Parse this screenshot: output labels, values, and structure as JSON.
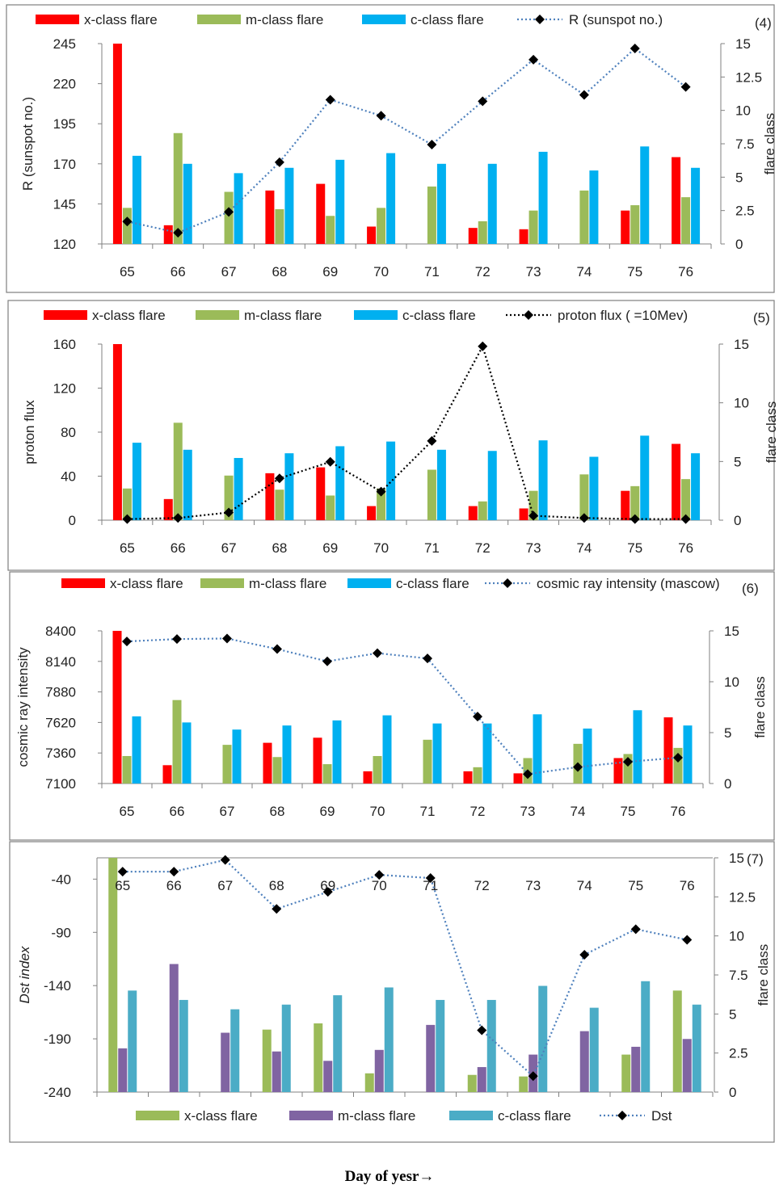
{
  "caption": "Day of yesr→",
  "colors": {
    "red": "#ff0000",
    "green": "#9bbb59",
    "blue": "#00b0f0",
    "purple": "#8064a2",
    "teal": "#4bacc6",
    "lightgreen": "#9bbb59",
    "dotted_blue": "#4f81bd",
    "dotted_black": "#000000",
    "marker": "#000000",
    "frame": "#7f7f7f"
  },
  "chart_data": [
    {
      "type": "bar",
      "panel_label": "(4)",
      "x": [
        "65",
        "66",
        "67",
        "68",
        "69",
        "70",
        "71",
        "72",
        "73",
        "74",
        "75",
        "76"
      ],
      "ylabel": "R (sunspot no.)",
      "y2label": "flare class",
      "yticks": [
        "120",
        "145",
        "170",
        "195",
        "220",
        "245"
      ],
      "y2ticks": [
        "0",
        "2.5",
        "5",
        "7.5",
        "10",
        "12.5",
        "15"
      ],
      "ylim": [
        120,
        245
      ],
      "y2lim": [
        0,
        15
      ],
      "series": [
        {
          "name": "x-class flare",
          "axis": "right",
          "kind": "bar",
          "values": [
            15,
            1.4,
            0,
            4.0,
            4.5,
            1.3,
            0,
            1.2,
            1.1,
            0,
            2.5,
            6.5
          ]
        },
        {
          "name": "m-class flare",
          "axis": "right",
          "kind": "bar",
          "values": [
            2.7,
            8.3,
            3.9,
            2.6,
            2.1,
            2.7,
            4.3,
            1.7,
            2.5,
            4.0,
            2.9,
            3.5
          ]
        },
        {
          "name": "c-class flare",
          "axis": "right",
          "kind": "bar",
          "values": [
            6.6,
            6.0,
            5.3,
            5.7,
            6.3,
            6.8,
            6.0,
            6.0,
            6.9,
            5.5,
            7.3,
            5.7
          ]
        },
        {
          "name": "R (sunspot no.)",
          "axis": "left",
          "kind": "line",
          "values": [
            134,
            127,
            140,
            171,
            210,
            200,
            182,
            209,
            235,
            213,
            242,
            218
          ]
        }
      ]
    },
    {
      "type": "bar",
      "panel_label": "(5)",
      "x": [
        "65",
        "66",
        "67",
        "68",
        "69",
        "70",
        "71",
        "72",
        "73",
        "74",
        "75",
        "76"
      ],
      "ylabel": "proton flux",
      "y2label": "flare class",
      "yticks": [
        "0",
        "40",
        "80",
        "120",
        "160"
      ],
      "y2ticks": [
        "0",
        "5",
        "10",
        "15"
      ],
      "ylim": [
        0,
        160
      ],
      "y2lim": [
        0,
        15
      ],
      "series": [
        {
          "name": "x-class flare",
          "axis": "right",
          "kind": "bar",
          "values": [
            15,
            1.8,
            0,
            4.0,
            4.5,
            1.2,
            0,
            1.2,
            1.0,
            0,
            2.5,
            6.5
          ]
        },
        {
          "name": "m-class flare",
          "axis": "right",
          "kind": "bar",
          "values": [
            2.7,
            8.3,
            3.8,
            2.6,
            2.1,
            2.7,
            4.3,
            1.6,
            2.5,
            3.9,
            2.9,
            3.5
          ]
        },
        {
          "name": "c-class flare",
          "axis": "right",
          "kind": "bar",
          "values": [
            6.6,
            6.0,
            5.3,
            5.7,
            6.3,
            6.7,
            6.0,
            5.9,
            6.8,
            5.4,
            7.2,
            5.7
          ]
        },
        {
          "name": "proton flux ( =10Mev)",
          "axis": "left",
          "kind": "line",
          "values": [
            1,
            2,
            7,
            38,
            53,
            26,
            72,
            158,
            4,
            2,
            1,
            1
          ]
        }
      ]
    },
    {
      "type": "bar",
      "panel_label": "(6)",
      "x": [
        "65",
        "66",
        "67",
        "68",
        "69",
        "70",
        "71",
        "72",
        "73",
        "74",
        "75",
        "76"
      ],
      "ylabel": "cosmic ray intensity",
      "y2label": "flare class",
      "yticks": [
        "7100",
        "7360",
        "7620",
        "7880",
        "8140",
        "8400"
      ],
      "y2ticks": [
        "0",
        "5",
        "10",
        "15"
      ],
      "ylim": [
        7100,
        8400
      ],
      "y2lim": [
        0,
        15
      ],
      "series": [
        {
          "name": "x-class flare",
          "axis": "right",
          "kind": "bar",
          "values": [
            15,
            1.8,
            0,
            4.0,
            4.5,
            1.2,
            0,
            1.2,
            1.0,
            0,
            2.5,
            6.5
          ]
        },
        {
          "name": "m-class flare",
          "axis": "right",
          "kind": "bar",
          "values": [
            2.7,
            8.2,
            3.8,
            2.6,
            1.9,
            2.7,
            4.3,
            1.6,
            2.5,
            3.9,
            2.9,
            3.5
          ]
        },
        {
          "name": "c-class flare",
          "axis": "right",
          "kind": "bar",
          "values": [
            6.6,
            6.0,
            5.3,
            5.7,
            6.2,
            6.7,
            5.9,
            5.9,
            6.8,
            5.4,
            7.2,
            5.7
          ]
        },
        {
          "name": "cosmic ray intensity (mascow)",
          "axis": "left",
          "kind": "line",
          "values": [
            8310,
            8330,
            8335,
            8245,
            8140,
            8210,
            8165,
            7670,
            7180,
            7240,
            7285,
            7320
          ]
        }
      ]
    },
    {
      "type": "bar",
      "panel_label": "(7)",
      "x": [
        "65",
        "66",
        "67",
        "68",
        "69",
        "70",
        "71",
        "72",
        "73",
        "74",
        "75",
        "76"
      ],
      "ylabel": "Dst index",
      "y2label": "flare class",
      "yticks": [
        "-240",
        "-190",
        "-140",
        "-90",
        "-40"
      ],
      "y2ticks": [
        "0",
        "2.5",
        "5",
        "7.5",
        "10",
        "12.5",
        "15"
      ],
      "ylim": [
        -240,
        -20
      ],
      "y2lim": [
        0,
        15
      ],
      "series": [
        {
          "name": "x-class flare",
          "axis": "right",
          "kind": "bar",
          "values": [
            15,
            0,
            0,
            4.0,
            4.4,
            1.2,
            0,
            1.1,
            1.0,
            0,
            2.4,
            6.5
          ]
        },
        {
          "name": "m-class flare",
          "axis": "right",
          "kind": "bar",
          "values": [
            2.8,
            8.2,
            3.8,
            2.6,
            2.0,
            2.7,
            4.3,
            1.6,
            2.4,
            3.9,
            2.9,
            3.4
          ]
        },
        {
          "name": "c-class flare",
          "axis": "right",
          "kind": "bar",
          "values": [
            6.5,
            5.9,
            5.3,
            5.6,
            6.2,
            6.7,
            5.9,
            5.9,
            6.8,
            5.4,
            7.1,
            5.6
          ]
        },
        {
          "name": "Dst",
          "axis": "left",
          "kind": "line",
          "values": [
            -33,
            -33,
            -22,
            -68,
            -52,
            -36,
            -39,
            -182,
            -225,
            -111,
            -87,
            -97
          ]
        }
      ]
    }
  ]
}
